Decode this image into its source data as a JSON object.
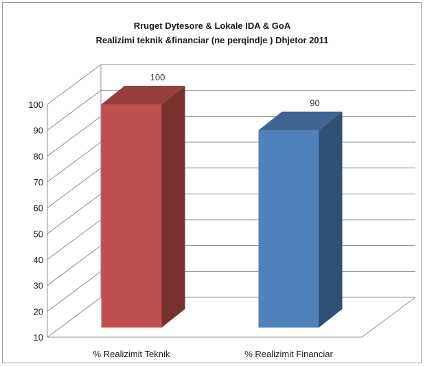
{
  "chart_data": {
    "type": "bar",
    "title": "Rruget Dytesore & Lokale  IDA & GoA",
    "subtitle": "Realizimi  teknik &financiar  (ne perqindje )  Dhjetor 2011",
    "categories": [
      "%  Realizimit Teknik",
      "%  Realizimit Financiar"
    ],
    "series": [
      {
        "values": [
          100,
          90
        ]
      }
    ],
    "data_labels": [
      "100",
      "90"
    ],
    "bar_colors": [
      "#c0504d",
      "#4f81bd"
    ],
    "ylim": [
      10,
      100
    ],
    "y_ticks": [
      "10",
      "20",
      "30",
      "40",
      "50",
      "60",
      "70",
      "80",
      "90",
      "100"
    ],
    "xlabel": "",
    "ylabel": "",
    "grid": true,
    "style": "3d-column",
    "legend": "none"
  }
}
